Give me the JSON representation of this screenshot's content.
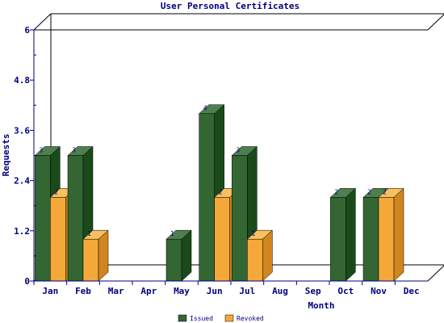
{
  "chart_data": {
    "type": "bar",
    "title": "User Personal Certificates",
    "xlabel": "Month",
    "ylabel": "Requests",
    "categories": [
      "Jan",
      "Feb",
      "Mar",
      "Apr",
      "May",
      "Jun",
      "Jul",
      "Aug",
      "Sep",
      "Oct",
      "Nov",
      "Dec"
    ],
    "series": [
      {
        "name": "Issued",
        "values": [
          3,
          3,
          0,
          0,
          1,
          4,
          3,
          0,
          0,
          2,
          2,
          0
        ]
      },
      {
        "name": "Revoked",
        "values": [
          2,
          1,
          0,
          0,
          0,
          2,
          1,
          0,
          0,
          0,
          2,
          0
        ]
      }
    ],
    "ylim": [
      0,
      6
    ],
    "yticks": [
      "0",
      "1.2",
      "2.4",
      "3.6",
      "4.8",
      "6"
    ],
    "legend_position": "bottom",
    "grid": false,
    "colors": {
      "issued_front": "#336633",
      "issued_side": "#1a4a1a",
      "issued_top": "#4f7f4f",
      "revoked_front": "#f5a83a",
      "revoked_side": "#d0861e",
      "revoked_top": "#f8c060",
      "axis": "#000080",
      "frame": "#000000",
      "text": "#000080"
    }
  }
}
